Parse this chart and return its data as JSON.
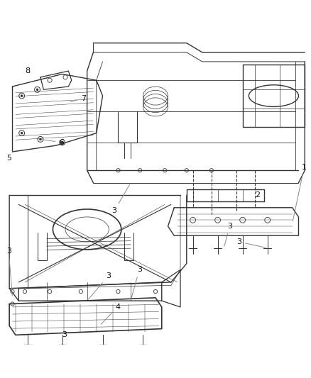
{
  "bg_color": "#ffffff",
  "line_color": "#333333",
  "callout_line_color": "#888888",
  "figsize": [
    4.38,
    5.33
  ],
  "dpi": 100
}
